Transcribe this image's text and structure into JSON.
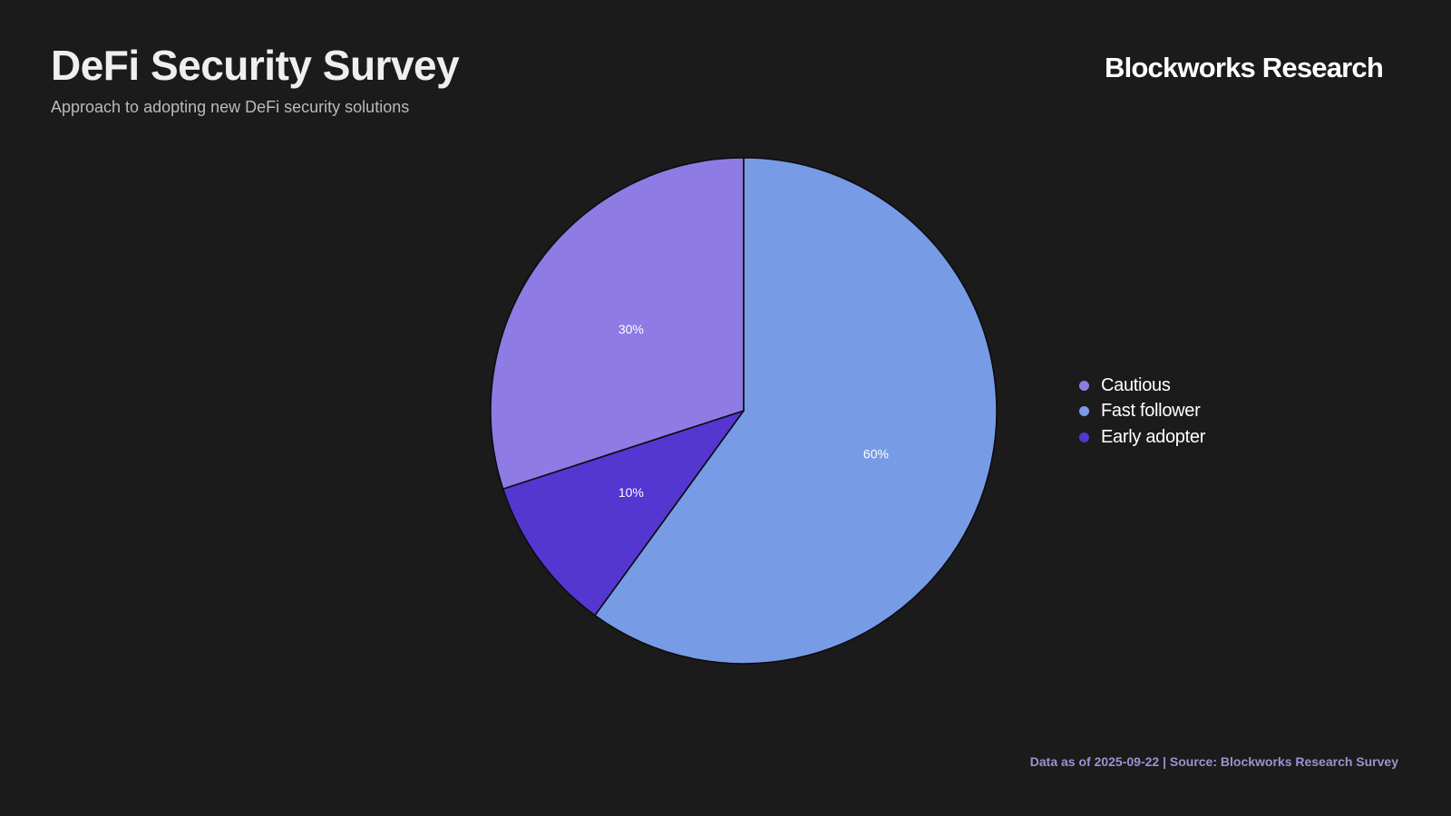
{
  "header": {
    "title": "DeFi Security Survey",
    "subtitle": "Approach to adopting new DeFi security solutions",
    "brand": "Blockworks Research"
  },
  "chart_data": {
    "type": "pie",
    "title": "DeFi Security Survey",
    "subtitle": "Approach to adopting new DeFi security solutions",
    "slices": [
      {
        "label": "Fast follower",
        "value": 60,
        "display": "60%",
        "color": "#789be6"
      },
      {
        "label": "Early adopter",
        "value": 10,
        "display": "10%",
        "color": "#5436d0"
      },
      {
        "label": "Cautious",
        "value": 30,
        "display": "30%",
        "color": "#8e7be3"
      }
    ],
    "legend": {
      "placement": "right",
      "order": [
        "Cautious",
        "Fast follower",
        "Early adopter"
      ]
    }
  },
  "footer": {
    "text": "Data as of 2025-09-22 | Source: Blockworks Research Survey"
  }
}
